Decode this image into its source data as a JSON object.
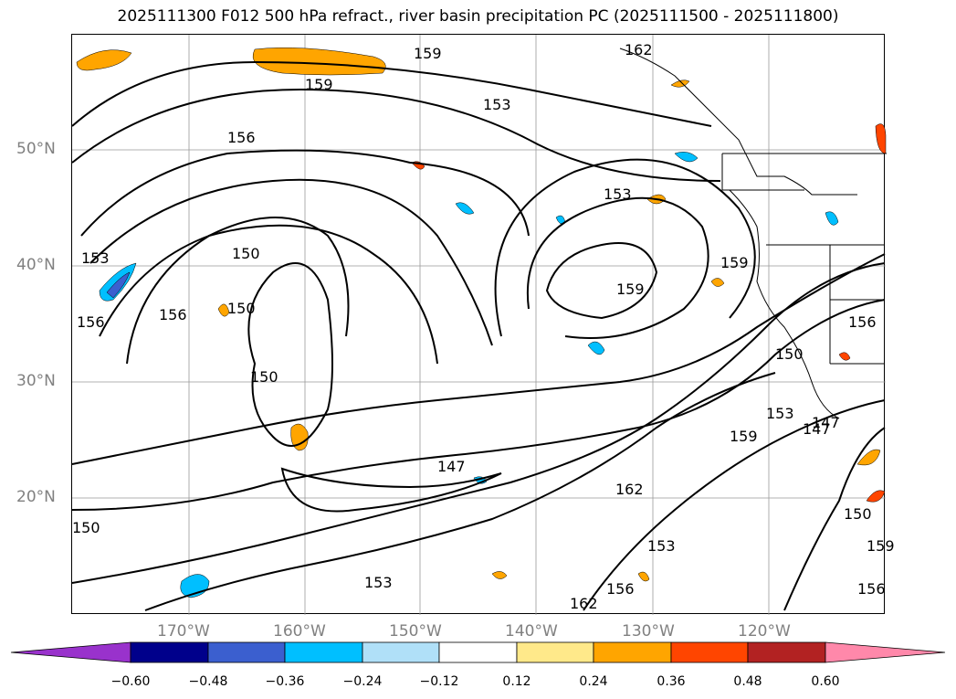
{
  "title": "2025111300 F012 500 hPa refract., river basin precipitation PC (2025111500 - 2025111800)",
  "lat_labels": [
    "50°N",
    "40°N",
    "30°N",
    "20°N"
  ],
  "lon_labels": [
    "170°W",
    "160°W",
    "150°W",
    "140°W",
    "130°W",
    "120°W"
  ],
  "contour_labels": [
    "159",
    "156",
    "153",
    "150",
    "147",
    "162",
    "159",
    "153",
    "156",
    "159",
    "153",
    "150",
    "156",
    "150",
    "159",
    "153",
    "147",
    "156",
    "159",
    "150",
    "162",
    "153",
    "147",
    "150",
    "156",
    "159",
    "162",
    "153",
    "156",
    "150"
  ],
  "colorbar": {
    "ticks": [
      "−0.60",
      "−0.48",
      "−0.36",
      "−0.24",
      "−0.12",
      "0.12",
      "0.24",
      "0.36",
      "0.48",
      "0.60"
    ],
    "colors": [
      "#9932cc",
      "#00008b",
      "#3b5fcf",
      "#00bfff",
      "#b0e0f8",
      "#ffffff",
      "#ffe98a",
      "#ffa500",
      "#ff4500",
      "#b22222",
      "#ff88aa"
    ]
  },
  "colors": {
    "land_border": "#000000",
    "contour": "#000000",
    "gridline": "#999999"
  }
}
